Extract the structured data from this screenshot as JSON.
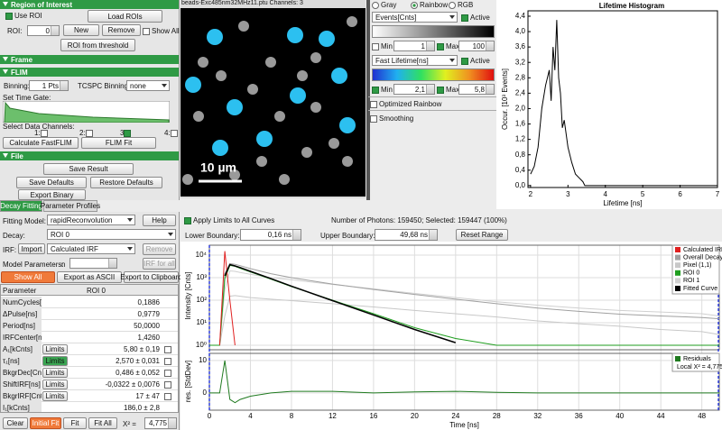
{
  "roi_panel": {
    "title": "Region of Interest",
    "use_roi": "Use ROI",
    "load_rois": "Load ROIs",
    "roi_label": "ROI:",
    "roi_value": "0",
    "new": "New",
    "remove": "Remove",
    "show_all": "Show All",
    "roi_from_threshold": "ROI from threshold"
  },
  "frame_panel": {
    "title": "Frame"
  },
  "flim_panel": {
    "title": "FLIM",
    "binning_label": "Binning:",
    "binning_value": "1 Pts",
    "tcspc_label": "TCSPC Binning:",
    "tcspc_value": "none",
    "time_gate_label": "Set Time Gate:",
    "channels_label": "Select Data Channels:",
    "channels": [
      "1:",
      "2:",
      "3",
      "4:"
    ],
    "calculate": "Calculate FastFLIM",
    "flim_fit": "FLIM Fit"
  },
  "file_panel": {
    "title": "File",
    "save_result": "Save Result",
    "save_defaults": "Save Defaults",
    "restore_defaults": "Restore Defaults",
    "export_binary": "Export Binary"
  },
  "tabs": [
    "Decay Fitting",
    "Parameter Profiles"
  ],
  "image": {
    "title": "beads-Exc485nm32MHz11.ptu Channels: 3",
    "scale_bar": "10 µm"
  },
  "color_panel": {
    "modes": [
      "Gray",
      "Rainbow",
      "RGB"
    ],
    "intensity_source": "Events[Cnts]",
    "active": "Active",
    "min": "Min",
    "min_value": "1",
    "max": "Max",
    "max_value": "100",
    "lifetime_source": "Fast Lifetime[ns]",
    "min_value2": "2,1",
    "max_value2": "5,8",
    "optimized_rainbow": "Optimized Rainbow",
    "smoothing": "Smoothing"
  },
  "histogram": {
    "type": "line",
    "title": "Lifetime Histogram",
    "x_label": "Lifetime [ns]",
    "y_label": "Occur. [10³ Events]",
    "x": [
      2.0,
      2.1,
      2.2,
      2.3,
      2.4,
      2.5,
      2.55,
      2.6,
      2.65,
      2.7,
      2.75,
      2.8,
      2.85,
      2.9,
      3.0,
      3.1,
      3.2,
      3.3,
      3.4,
      3.45,
      3.5,
      7.0
    ],
    "values": [
      0.3,
      0.5,
      1.0,
      2.0,
      2.6,
      3.0,
      2.2,
      3.6,
      3.0,
      4.3,
      2.8,
      2.4,
      1.5,
      1.7,
      1.0,
      0.6,
      0.3,
      0.2,
      0.1,
      0.0,
      0.0,
      0.0
    ],
    "color": "#000000",
    "xlim": [
      1.93,
      7
    ],
    "ylim": [
      -0.05,
      4.54
    ],
    "xticks": [
      2,
      3,
      4,
      5,
      6,
      7
    ],
    "yticks": [
      {
        "value": 0,
        "label": "0,0"
      },
      {
        "value": 0.4,
        "label": "0,4"
      },
      {
        "value": 0.8,
        "label": "0,8"
      },
      {
        "value": 1.2,
        "label": "1,2"
      },
      {
        "value": 1.6,
        "label": "1,6"
      },
      {
        "value": 2.0,
        "label": "2,0"
      },
      {
        "value": 2.4,
        "label": "2,4"
      },
      {
        "value": 2.8,
        "label": "2,8"
      },
      {
        "value": 3.2,
        "label": "3,2"
      },
      {
        "value": 3.6,
        "label": "3,6"
      },
      {
        "value": 4.0,
        "label": "4,0"
      },
      {
        "value": 4.4,
        "label": "4,4"
      }
    ]
  },
  "fit_panel": {
    "fitting_model_label": "Fitting Model:",
    "fitting_model": "rapidReconvolution",
    "help": "Help",
    "decay_label": "Decay:",
    "decay": "ROI 0",
    "irf_label": "IRF:",
    "import": "Import",
    "irf": "Calculated IRF",
    "remove": "Remove",
    "model_parameters_label": "Model Parameters:",
    "n_label": "n",
    "irf_for_all": "IRF for all",
    "show_all": "Show All",
    "export_ascii": "Export as ASCII",
    "export_clipboard": "Export to Clipboard"
  },
  "parameter_table": {
    "headers": [
      "Parameter",
      "ROI 0"
    ],
    "limits_button": "Limits",
    "rows": [
      {
        "name": "NumCycles[MCnts]",
        "value": "0,1886",
        "limits": false
      },
      {
        "name": "ΔPulse[ns]",
        "value": "0,9779",
        "limits": false
      },
      {
        "name": "Period[ns]",
        "value": "50,0000",
        "limits": false
      },
      {
        "name": "IRFCenter[ns]",
        "value": "1,4260",
        "limits": false
      },
      {
        "name": "A₁[kCnts]",
        "value": "5,80 ± 0,19",
        "limits": true
      },
      {
        "name": "τ₁[ns]",
        "value": "2,570 ± 0,031",
        "limits": true
      },
      {
        "name": "BkgrDec[Cnts]",
        "value": "0,486 ± 0,052",
        "limits": true
      },
      {
        "name": "ShiftIRF[ns]",
        "value": "-0,0322 ± 0,0076",
        "limits": true
      },
      {
        "name": "BkgrIRF[Cnts]",
        "value": "17 ± 47",
        "limits": true
      },
      {
        "name": "I₁[kCnts]",
        "value": "186,0 ± 2,8",
        "limits": false
      }
    ]
  },
  "fit_buttons": {
    "clear": "Clear",
    "initial_fit": "Initial Fit",
    "fit": "Fit",
    "fit_all": "Fit All",
    "chi2_label": "X² =",
    "chi2": "4,775"
  },
  "decay_controls": {
    "apply_limits": "Apply Limits to All Curves",
    "photons": "Number of Photons: 159450; Selected: 159447 (100%)",
    "lower_label": "Lower Boundary:",
    "lower": "0,16 ns",
    "upper_label": "Upper Boundary:",
    "upper": "49,68 ns",
    "reset": "Reset Range"
  },
  "decay_plot": {
    "type": "line",
    "y_label": "Intensity [Cnts]",
    "log": true,
    "x": [
      0,
      1,
      1.5,
      2,
      2.5,
      3,
      4,
      6,
      8,
      12,
      16,
      20,
      24,
      28,
      32,
      36,
      40,
      44,
      48,
      49.7
    ],
    "series": [
      {
        "name": "Calculated IRF",
        "color": "#e02020",
        "values": [
          null,
          1,
          15000,
          100,
          1,
          null,
          null,
          null,
          null,
          null,
          null,
          null,
          null,
          null,
          null,
          null,
          null,
          null,
          null,
          null
        ]
      },
      {
        "name": "Overall Decay",
        "color": "#a0a0a0",
        "values": [
          1,
          1,
          1500,
          4200,
          3900,
          3400,
          2500,
          1500,
          1000,
          520,
          300,
          180,
          110,
          70,
          45,
          32,
          24,
          20,
          17,
          15
        ]
      },
      {
        "name": "Pixel (1,1)",
        "color": "#c8c8c8",
        "values": [
          1,
          1,
          20,
          150,
          160,
          150,
          130,
          110,
          95,
          70,
          50,
          35,
          25,
          18,
          12,
          9,
          7,
          5,
          4,
          3
        ]
      },
      {
        "name": "ROI 0",
        "color": "#1f9e1f",
        "values": [
          1,
          1,
          900,
          3500,
          3200,
          2600,
          1800,
          850,
          400,
          100,
          25,
          6,
          2,
          1,
          1,
          1,
          1,
          1,
          1,
          1
        ]
      },
      {
        "name": "ROI 1",
        "color": "#d0d0d0",
        "values": [
          1,
          1,
          300,
          2000,
          1900,
          1700,
          1400,
          1000,
          800,
          500,
          320,
          200,
          130,
          85,
          60,
          45,
          35,
          30,
          25,
          20
        ]
      },
      {
        "name": "Fitted Curve",
        "color": "#000000",
        "values": [
          null,
          null,
          1200,
          3800,
          3300,
          2800,
          1900,
          900,
          420,
          95,
          22,
          5,
          1.3,
          null,
          null,
          null,
          null,
          null,
          null,
          null
        ]
      }
    ],
    "xlim": [
      0,
      49.7
    ],
    "ylim": [
      0.63,
      27500
    ],
    "yticks": [
      {
        "value": 1,
        "label": "10⁰"
      },
      {
        "value": 10,
        "label": "10¹"
      },
      {
        "value": 100,
        "label": "10²"
      },
      {
        "value": 1000,
        "label": "10³"
      },
      {
        "value": 10000,
        "label": "10⁴"
      }
    ]
  },
  "residual_plot": {
    "type": "line",
    "x_label": "Time [ns]",
    "y_label": "res. [StdDev]",
    "note": "Local X² = 4,775",
    "x": [
      0,
      1,
      1.5,
      2,
      2.5,
      3,
      4,
      6,
      8,
      12,
      16,
      20,
      24,
      28,
      32,
      36,
      40,
      44,
      48,
      49.7
    ],
    "series": [
      {
        "name": "Residuals",
        "color": "#1f7a1f",
        "values": [
          0,
          0,
          10,
          -2,
          -3,
          -2,
          -1,
          0,
          0.5,
          0.5,
          0,
          0.3,
          0.5,
          0.2,
          0,
          0,
          0,
          0,
          0,
          0
        ]
      }
    ],
    "xlim": [
      0,
      49.7
    ],
    "ylim": [
      -5.3,
      12.2
    ],
    "yticks": [
      0,
      10
    ],
    "xticks": [
      0,
      4,
      8,
      12,
      16,
      20,
      24,
      28,
      32,
      36,
      40,
      44,
      48
    ]
  }
}
